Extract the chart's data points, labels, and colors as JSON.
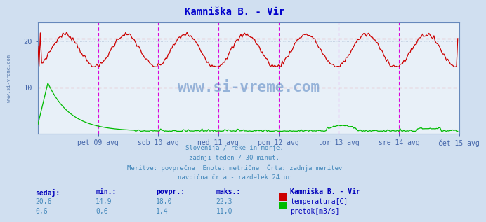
{
  "title": "Kamniška B. - Vir",
  "bg_color": "#d0dff0",
  "plot_bg_color": "#e8f0f8",
  "grid_color": "#b8c8dc",
  "title_color": "#0000cc",
  "tick_color": "#4466aa",
  "temp_color": "#cc0000",
  "flow_color": "#00bb00",
  "hline_color": "#dd0000",
  "vline_color": "#dd00dd",
  "temp_hline_y": 20.6,
  "flow_hline_y": 10.0,
  "temp_avg": 18.0,
  "temp_min": 14.9,
  "temp_max": 22.3,
  "temp_current": 20.6,
  "flow_avg": 1.4,
  "flow_min": 0.6,
  "flow_max": 11.0,
  "flow_current": 0.6,
  "footer_lines": [
    "Slovenija / reke in morje.",
    "zadnji teden / 30 minut.",
    "Meritve: povprečne  Enote: metrične  Črta: zadnja meritev",
    "navpična črta - razdelek 24 ur"
  ],
  "stats_labels": [
    "sedaj:",
    "min.:",
    "povpr.:",
    "maks.:"
  ],
  "stats_label_color": "#0000bb",
  "stats_value_color": "#4488bb",
  "station_label": "Kamniška B. - Vir",
  "legend_items": [
    "temperatura[C]",
    "pretok[m3/s]"
  ],
  "legend_colors": [
    "#cc0000",
    "#00bb00"
  ],
  "x_tick_labels": [
    "pet 09 avg",
    "sob 10 avg",
    "ned 11 avg",
    "pon 12 avg",
    "tor 13 avg",
    "sre 14 avg",
    "čet 15 avg"
  ],
  "ylim": [
    0,
    24
  ],
  "yticks": [
    10,
    20
  ],
  "n_days": 7,
  "sidebar_text": "www.si-vreme.com",
  "sidebar_color": "#5577aa",
  "watermark_color": "#4477bb"
}
